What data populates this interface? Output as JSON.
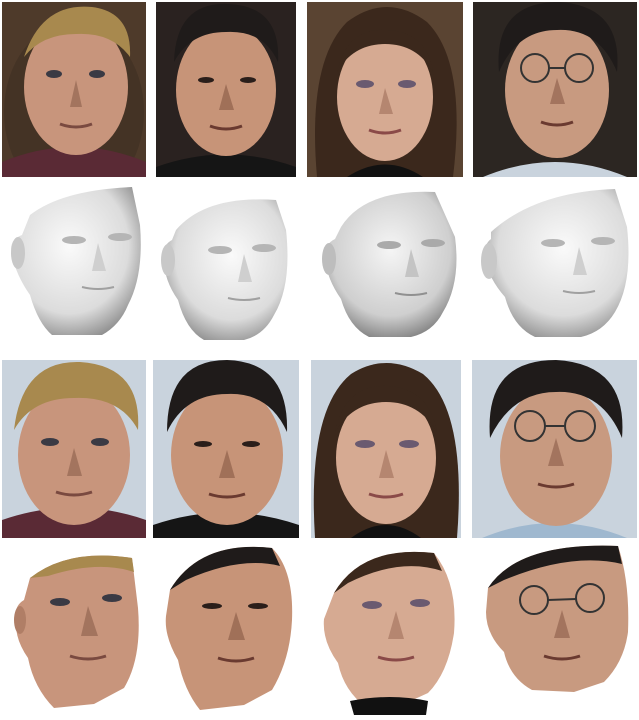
{
  "figure": {
    "rows": [
      {
        "kind": "photo",
        "people": [
          "person-1",
          "person-2",
          "person-3",
          "person-4"
        ]
      },
      {
        "kind": "3d-shape",
        "people": [
          "person-1",
          "person-2",
          "person-3",
          "person-4"
        ]
      },
      {
        "kind": "photo",
        "people": [
          "person-1",
          "person-2",
          "person-3",
          "person-4"
        ]
      },
      {
        "kind": "textured-3d",
        "people": [
          "person-1",
          "person-2",
          "person-3",
          "person-4"
        ]
      }
    ],
    "colors": {
      "background": "#ffffff",
      "mesh": "#e6e6e6",
      "mesh_shadow": "#8f8f8f",
      "skin": "#c89a80",
      "skin_shadow": "#8a5f4a",
      "hair_blond": "#a8894e",
      "hair_dark": "#1f1b1a",
      "photo_bg_warm": "#5a4432",
      "photo_bg_cool": "#c9d3dd"
    }
  }
}
